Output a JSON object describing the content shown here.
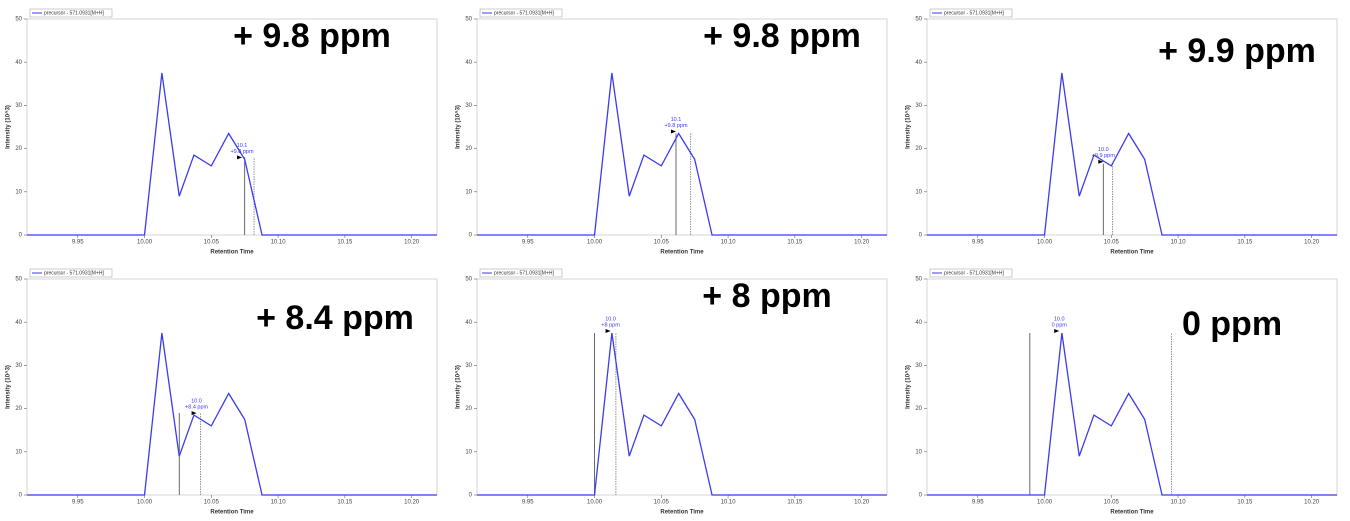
{
  "chart_data": [
    {
      "type": "line",
      "xlabel": "Retention Time",
      "ylabel": "Intensity (10^3)",
      "xlim": [
        9.912,
        10.219
      ],
      "ylim": [
        0,
        50
      ],
      "xticks": [
        9.95,
        {
          "value": 10,
          "label": "10.00"
        },
        10.05,
        {
          "value": 10.1,
          "label": "10.10"
        },
        10.15,
        {
          "value": 10.2,
          "label": "10.20"
        }
      ],
      "yticks": [
        0,
        10,
        20,
        30,
        40,
        50
      ],
      "series": [
        {
          "name": "precursor - 571.0931[M+H]",
          "color": "#3b3bf0",
          "x": [
            9.912,
            10.0,
            10.013,
            10.026,
            10.037,
            10.05,
            10.063,
            10.075,
            10.088,
            10.219
          ],
          "values": [
            0,
            0,
            37.5,
            9,
            18.5,
            16,
            23.5,
            17.5,
            0,
            0
          ]
        }
      ],
      "boundaries": [
        10.075,
        10.082
      ],
      "boundary_height": 18,
      "peak_point": [
        10.073,
        17.5
      ],
      "peak_label": [
        "10.1",
        "+9.8 ppm"
      ],
      "ppm_label": "+ 9.8 ppm"
    },
    {
      "type": "line",
      "xlabel": "Retention Time",
      "ylabel": "Intensity (10^3)",
      "xlim": [
        9.912,
        10.219
      ],
      "ylim": [
        0,
        50
      ],
      "xticks": [
        9.95,
        {
          "value": 10,
          "label": "10.00"
        },
        10.05,
        {
          "value": 10.1,
          "label": "10.10"
        },
        10.15,
        {
          "value": 10.2,
          "label": "10.20"
        }
      ],
      "yticks": [
        0,
        10,
        20,
        30,
        40,
        50
      ],
      "series": [
        {
          "name": "precursor - 571.0931[M+H]",
          "color": "#3b3bf0",
          "x": [
            9.912,
            10.0,
            10.013,
            10.026,
            10.037,
            10.05,
            10.063,
            10.075,
            10.088,
            10.219
          ],
          "values": [
            0,
            0,
            37.5,
            9,
            18.5,
            16,
            23.5,
            17.5,
            0,
            0
          ]
        }
      ],
      "boundaries": [
        10.061,
        10.072
      ],
      "boundary_height": 23.5,
      "peak_point": [
        10.061,
        23.5
      ],
      "peak_label": [
        "10.1",
        "+9.8 ppm"
      ],
      "ppm_label": "+ 9.8 ppm"
    },
    {
      "type": "line",
      "xlabel": "Retention Time",
      "ylabel": "Intensity (10^3)",
      "xlim": [
        9.912,
        10.219
      ],
      "ylim": [
        0,
        50
      ],
      "xticks": [
        9.95,
        {
          "value": 10,
          "label": "10.00"
        },
        10.05,
        {
          "value": 10.1,
          "label": "10.10"
        },
        10.15,
        {
          "value": 10.2,
          "label": "10.20"
        }
      ],
      "yticks": [
        0,
        10,
        20,
        30,
        40,
        50
      ],
      "series": [
        {
          "name": "precursor - 571.0931[M+H]",
          "color": "#3b3bf0",
          "x": [
            9.912,
            10.0,
            10.013,
            10.026,
            10.037,
            10.05,
            10.063,
            10.075,
            10.088,
            10.219
          ],
          "values": [
            0,
            0,
            37.5,
            9,
            18.5,
            16,
            23.5,
            17.5,
            0,
            0
          ]
        }
      ],
      "boundaries": [
        10.044,
        10.051
      ],
      "boundary_height": 16.5,
      "peak_point": [
        10.044,
        16.5
      ],
      "peak_label": [
        "10.0",
        "+9.9 ppm"
      ],
      "ppm_label": "+ 9.9 ppm"
    },
    {
      "type": "line",
      "xlabel": "Retention Time",
      "ylabel": "Intensity (10^3)",
      "xlim": [
        9.912,
        10.219
      ],
      "ylim": [
        0,
        50
      ],
      "xticks": [
        9.95,
        {
          "value": 10,
          "label": "10.00"
        },
        10.05,
        {
          "value": 10.1,
          "label": "10.10"
        },
        10.15,
        {
          "value": 10.2,
          "label": "10.20"
        }
      ],
      "yticks": [
        0,
        10,
        20,
        30,
        40,
        50
      ],
      "series": [
        {
          "name": "precursor - 571.0931[M+H]",
          "color": "#3b3bf0",
          "x": [
            9.912,
            10.0,
            10.013,
            10.026,
            10.037,
            10.05,
            10.063,
            10.075,
            10.088,
            10.219
          ],
          "values": [
            0,
            0,
            37.5,
            9,
            18.5,
            16,
            23.5,
            17.5,
            0,
            0
          ]
        }
      ],
      "boundaries": [
        10.026,
        10.042
      ],
      "boundary_height": 19,
      "peak_point": [
        10.039,
        18.5
      ],
      "peak_label": [
        "10.0",
        "+8.4 ppm"
      ],
      "ppm_label": "+ 8.4 ppm"
    },
    {
      "type": "line",
      "xlabel": "Retention Time",
      "ylabel": "Intensity (10^3)",
      "xlim": [
        9.912,
        10.219
      ],
      "ylim": [
        0,
        50
      ],
      "xticks": [
        9.95,
        {
          "value": 10,
          "label": "10.00"
        },
        10.05,
        {
          "value": 10.1,
          "label": "10.10"
        },
        10.15,
        {
          "value": 10.2,
          "label": "10.20"
        }
      ],
      "yticks": [
        0,
        10,
        20,
        30,
        40,
        50
      ],
      "series": [
        {
          "name": "precursor - 571.0931[M+H]",
          "color": "#3b3bf0",
          "x": [
            9.912,
            10.0,
            10.013,
            10.026,
            10.037,
            10.05,
            10.063,
            10.075,
            10.088,
            10.219
          ],
          "values": [
            0,
            0,
            37.5,
            9,
            18.5,
            16,
            23.5,
            17.5,
            0,
            0
          ]
        }
      ],
      "boundaries": [
        10.0,
        10.016
      ],
      "boundary_height": 37.5,
      "peak_point": [
        10.012,
        37.5
      ],
      "peak_label": [
        "10.0",
        "+8 ppm"
      ],
      "ppm_label": "+ 8 ppm"
    },
    {
      "type": "line",
      "xlabel": "Retention Time",
      "ylabel": "Intensity (10^3)",
      "xlim": [
        9.912,
        10.219
      ],
      "ylim": [
        0,
        50
      ],
      "xticks": [
        9.95,
        {
          "value": 10,
          "label": "10.00"
        },
        10.05,
        {
          "value": 10.1,
          "label": "10.10"
        },
        10.15,
        {
          "value": 10.2,
          "label": "10.20"
        }
      ],
      "yticks": [
        0,
        10,
        20,
        30,
        40,
        50
      ],
      "series": [
        {
          "name": "precursor - 571.0931[M+H]",
          "color": "#3b3bf0",
          "x": [
            9.912,
            10.0,
            10.013,
            10.026,
            10.037,
            10.05,
            10.063,
            10.075,
            10.088,
            10.219
          ],
          "values": [
            0,
            0,
            37.5,
            9,
            18.5,
            16,
            23.5,
            17.5,
            0,
            0
          ]
        }
      ],
      "boundaries": [
        9.989,
        10.095
      ],
      "boundary_height": 37.5,
      "peak_point": [
        10.011,
        37.5
      ],
      "peak_label": [
        "10.0",
        "0 ppm"
      ],
      "ppm_label": "0 ppm"
    }
  ]
}
